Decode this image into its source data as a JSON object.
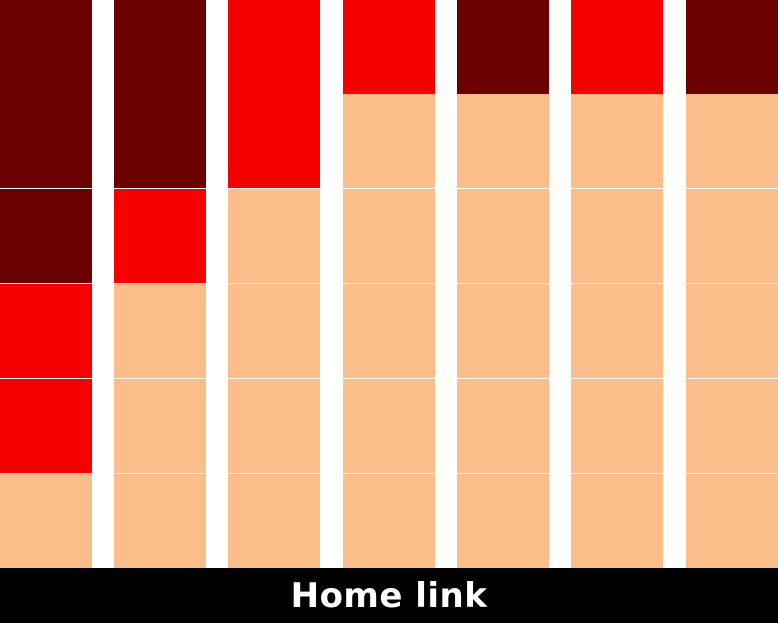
{
  "colors": {
    "dark": "#6a0000",
    "red": "#f70000",
    "empty": "#fbbd89",
    "background": "#ffffff",
    "footer_bg": "#000000",
    "footer_text": "#ffffff"
  },
  "board": {
    "columns": 7,
    "rows": 6,
    "grid": [
      [
        "dark",
        "dark",
        "red",
        "red",
        "dark",
        "red",
        "dark"
      ],
      [
        "dark",
        "dark",
        "red",
        "empty",
        "empty",
        "empty",
        "empty"
      ],
      [
        "dark",
        "red",
        "empty",
        "empty",
        "empty",
        "empty",
        "empty"
      ],
      [
        "red",
        "empty",
        "empty",
        "empty",
        "empty",
        "empty",
        "empty"
      ],
      [
        "red",
        "empty",
        "empty",
        "empty",
        "empty",
        "empty",
        "empty"
      ],
      [
        "empty",
        "empty",
        "empty",
        "empty",
        "empty",
        "empty",
        "empty"
      ]
    ]
  },
  "footer": {
    "home_label": "Home link"
  }
}
